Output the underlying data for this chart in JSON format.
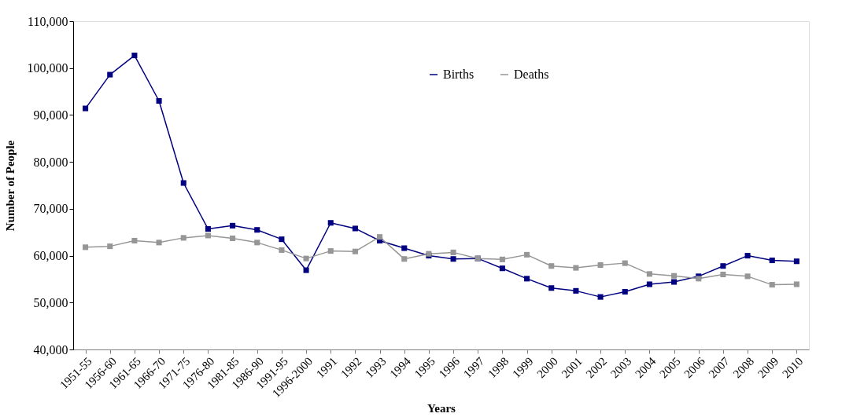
{
  "chart_data": {
    "type": "line",
    "xlabel": "Years",
    "ylabel": "Number of People",
    "categories": [
      "1951-55",
      "1956-60",
      "1961-65",
      "1966-70",
      "1971-75",
      "1976-80",
      "1981-85",
      "1986-90",
      "1991-95",
      "1996-2000",
      "1991",
      "1992",
      "1993",
      "1994",
      "1995",
      "1996",
      "1997",
      "1998",
      "1999",
      "2000",
      "2001",
      "2002",
      "2003",
      "2004",
      "2005",
      "2006",
      "2007",
      "2008",
      "2009",
      "2010"
    ],
    "series": [
      {
        "name": "Births",
        "color": "#000080",
        "values": [
          91400,
          98600,
          102700,
          93000,
          75500,
          65700,
          66400,
          65500,
          63500,
          56900,
          67000,
          65800,
          63200,
          61600,
          60000,
          59300,
          59400,
          57300,
          55100,
          53100,
          52500,
          51200,
          52300,
          53900,
          54400,
          55600,
          57800,
          60000,
          59000,
          58800
        ]
      },
      {
        "name": "Deaths",
        "color": "#969696",
        "values": [
          61800,
          62000,
          63200,
          62800,
          63800,
          64300,
          63700,
          62800,
          61200,
          59400,
          61000,
          60900,
          64000,
          59300,
          60400,
          60700,
          59400,
          59200,
          60200,
          57800,
          57400,
          58000,
          58400,
          56100,
          55700,
          55100,
          56000,
          55600,
          53800,
          53900
        ]
      }
    ],
    "ylim": [
      40000,
      110000
    ],
    "yticks": [
      {
        "value": 40000,
        "label": "40,000"
      },
      {
        "value": 50000,
        "label": "50,000"
      },
      {
        "value": 60000,
        "label": "60,000"
      },
      {
        "value": 70000,
        "label": "70,000"
      },
      {
        "value": 80000,
        "label": "80,000"
      },
      {
        "value": 90000,
        "label": "90,000"
      },
      {
        "value": 100000,
        "label": "100,000"
      },
      {
        "value": 110000,
        "label": "110,000"
      }
    ],
    "grid": false,
    "legend": "top",
    "marker": "square",
    "line_style": "solid"
  }
}
